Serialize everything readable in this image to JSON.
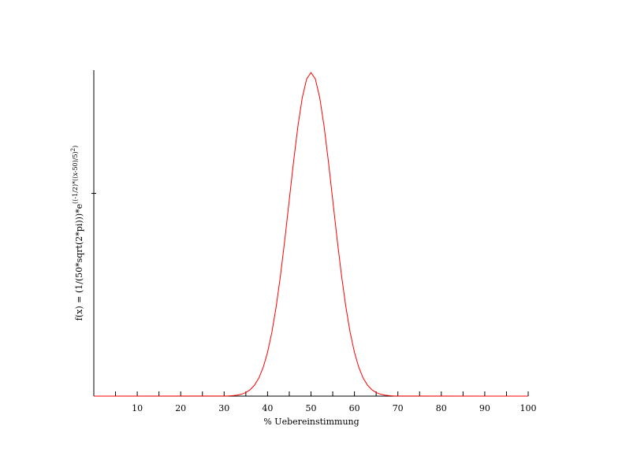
{
  "chart_data": {
    "type": "line",
    "xlabel": "% Uebereinstimmung",
    "ylabel_parts": [
      "f(x) = (1/(50*sqrt(2*pi)))*e",
      "((-1/2)*((x-50)/5)",
      "2",
      ")"
    ],
    "x": [
      0,
      30,
      31,
      32,
      33,
      34,
      35,
      36,
      37,
      38,
      39,
      40,
      41,
      42,
      43,
      44,
      45,
      46,
      47,
      48,
      49,
      50,
      51,
      52,
      53,
      54,
      55,
      56,
      57,
      58,
      59,
      60,
      61,
      62,
      63,
      64,
      65,
      66,
      67,
      68,
      69,
      70,
      100
    ],
    "series": [
      {
        "color": "#ff0000",
        "values": [
          0,
          2.6766e-06,
          5.8404e-06,
          1.2238e-05,
          2.4644e-05,
          4.7681e-05,
          8.8637e-05,
          0.00015831,
          0.00027165,
          0.00044789,
          0.00070948,
          0.0010798,
          0.001579,
          0.0022184,
          0.0029945,
          0.0038837,
          0.0048394,
          0.0057937,
          0.0066645,
          0.0073654,
          0.0078208,
          0.0079788,
          0.0078208,
          0.0073654,
          0.0066645,
          0.0057937,
          0.0048394,
          0.0038837,
          0.0029945,
          0.0022184,
          0.001579,
          0.0010798,
          0.00070948,
          0.00044789,
          0.00027165,
          0.00015831,
          8.8637e-05,
          4.7681e-05,
          2.4644e-05,
          1.2238e-05,
          5.8404e-06,
          2.6766e-06,
          0
        ]
      }
    ],
    "xlim": [
      0,
      100
    ],
    "xticks": [
      10,
      20,
      30,
      40,
      50,
      60,
      70,
      80,
      90,
      100
    ],
    "xminorticks": [
      5,
      15,
      25,
      35,
      45,
      55,
      65,
      75,
      85,
      95
    ],
    "ylim": [
      0,
      0.00804
    ],
    "yticks": [
      0.005
    ],
    "ytick_labels": false,
    "grid": false
  }
}
